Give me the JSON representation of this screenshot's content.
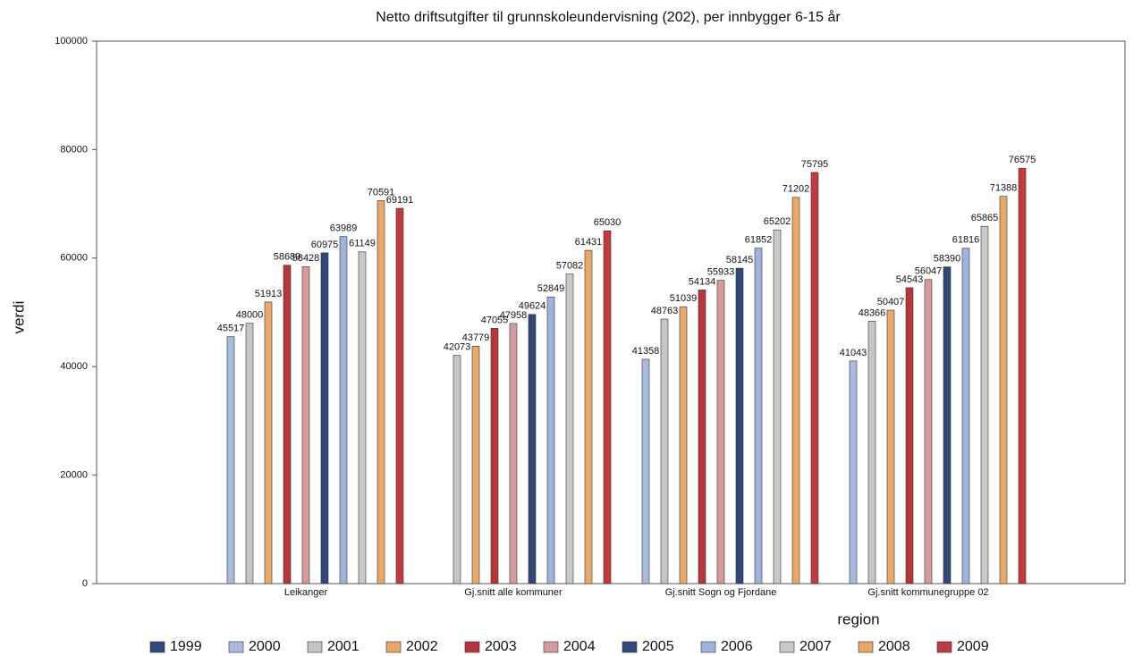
{
  "chart_data": {
    "type": "bar",
    "title": "Netto driftsutgifter til grunnskoleundervisning (202), per innbygger 6-15 år",
    "x_label": "region",
    "y_label": "verdi",
    "categories": [
      "Leikanger",
      "Gj.snitt alle kommuner",
      "Gj.snitt Sogn og Fjordane",
      "Gj.snitt kommunegruppe 02"
    ],
    "series": [
      {
        "name": "1999",
        "color": "#2f4a7a",
        "values": [
          null,
          null,
          null,
          null
        ]
      },
      {
        "name": "2000",
        "color": "#a9b9df",
        "values": [
          45517,
          null,
          41358,
          41043
        ]
      },
      {
        "name": "2001",
        "color": "#c4c4c4",
        "values": [
          48000,
          42073,
          48763,
          48366
        ]
      },
      {
        "name": "2002",
        "color": "#e9a868",
        "values": [
          51913,
          43779,
          51039,
          50407
        ]
      },
      {
        "name": "2003",
        "color": "#b8363a",
        "values": [
          58689,
          47055,
          54134,
          54543
        ]
      },
      {
        "name": "2004",
        "color": "#d49a9c",
        "values": [
          58428,
          47958,
          55933,
          56047
        ]
      },
      {
        "name": "2005",
        "color": "#2f4a7a",
        "values": [
          60975,
          49624,
          58145,
          58390
        ]
      },
      {
        "name": "2006",
        "color": "#9fb2de",
        "values": [
          63989,
          52849,
          61852,
          61816
        ]
      },
      {
        "name": "2007",
        "color": "#c8c8c8",
        "values": [
          61149,
          57082,
          65202,
          65865
        ]
      },
      {
        "name": "2008",
        "color": "#e9a868",
        "values": [
          70591,
          61431,
          71202,
          71388
        ]
      },
      {
        "name": "2009",
        "color": "#c23a3e",
        "values": [
          69191,
          65030,
          75795,
          76575
        ]
      }
    ],
    "ylim": [
      0,
      100000
    ],
    "yticks": [
      0,
      20000,
      40000,
      60000,
      80000,
      100000
    ]
  }
}
